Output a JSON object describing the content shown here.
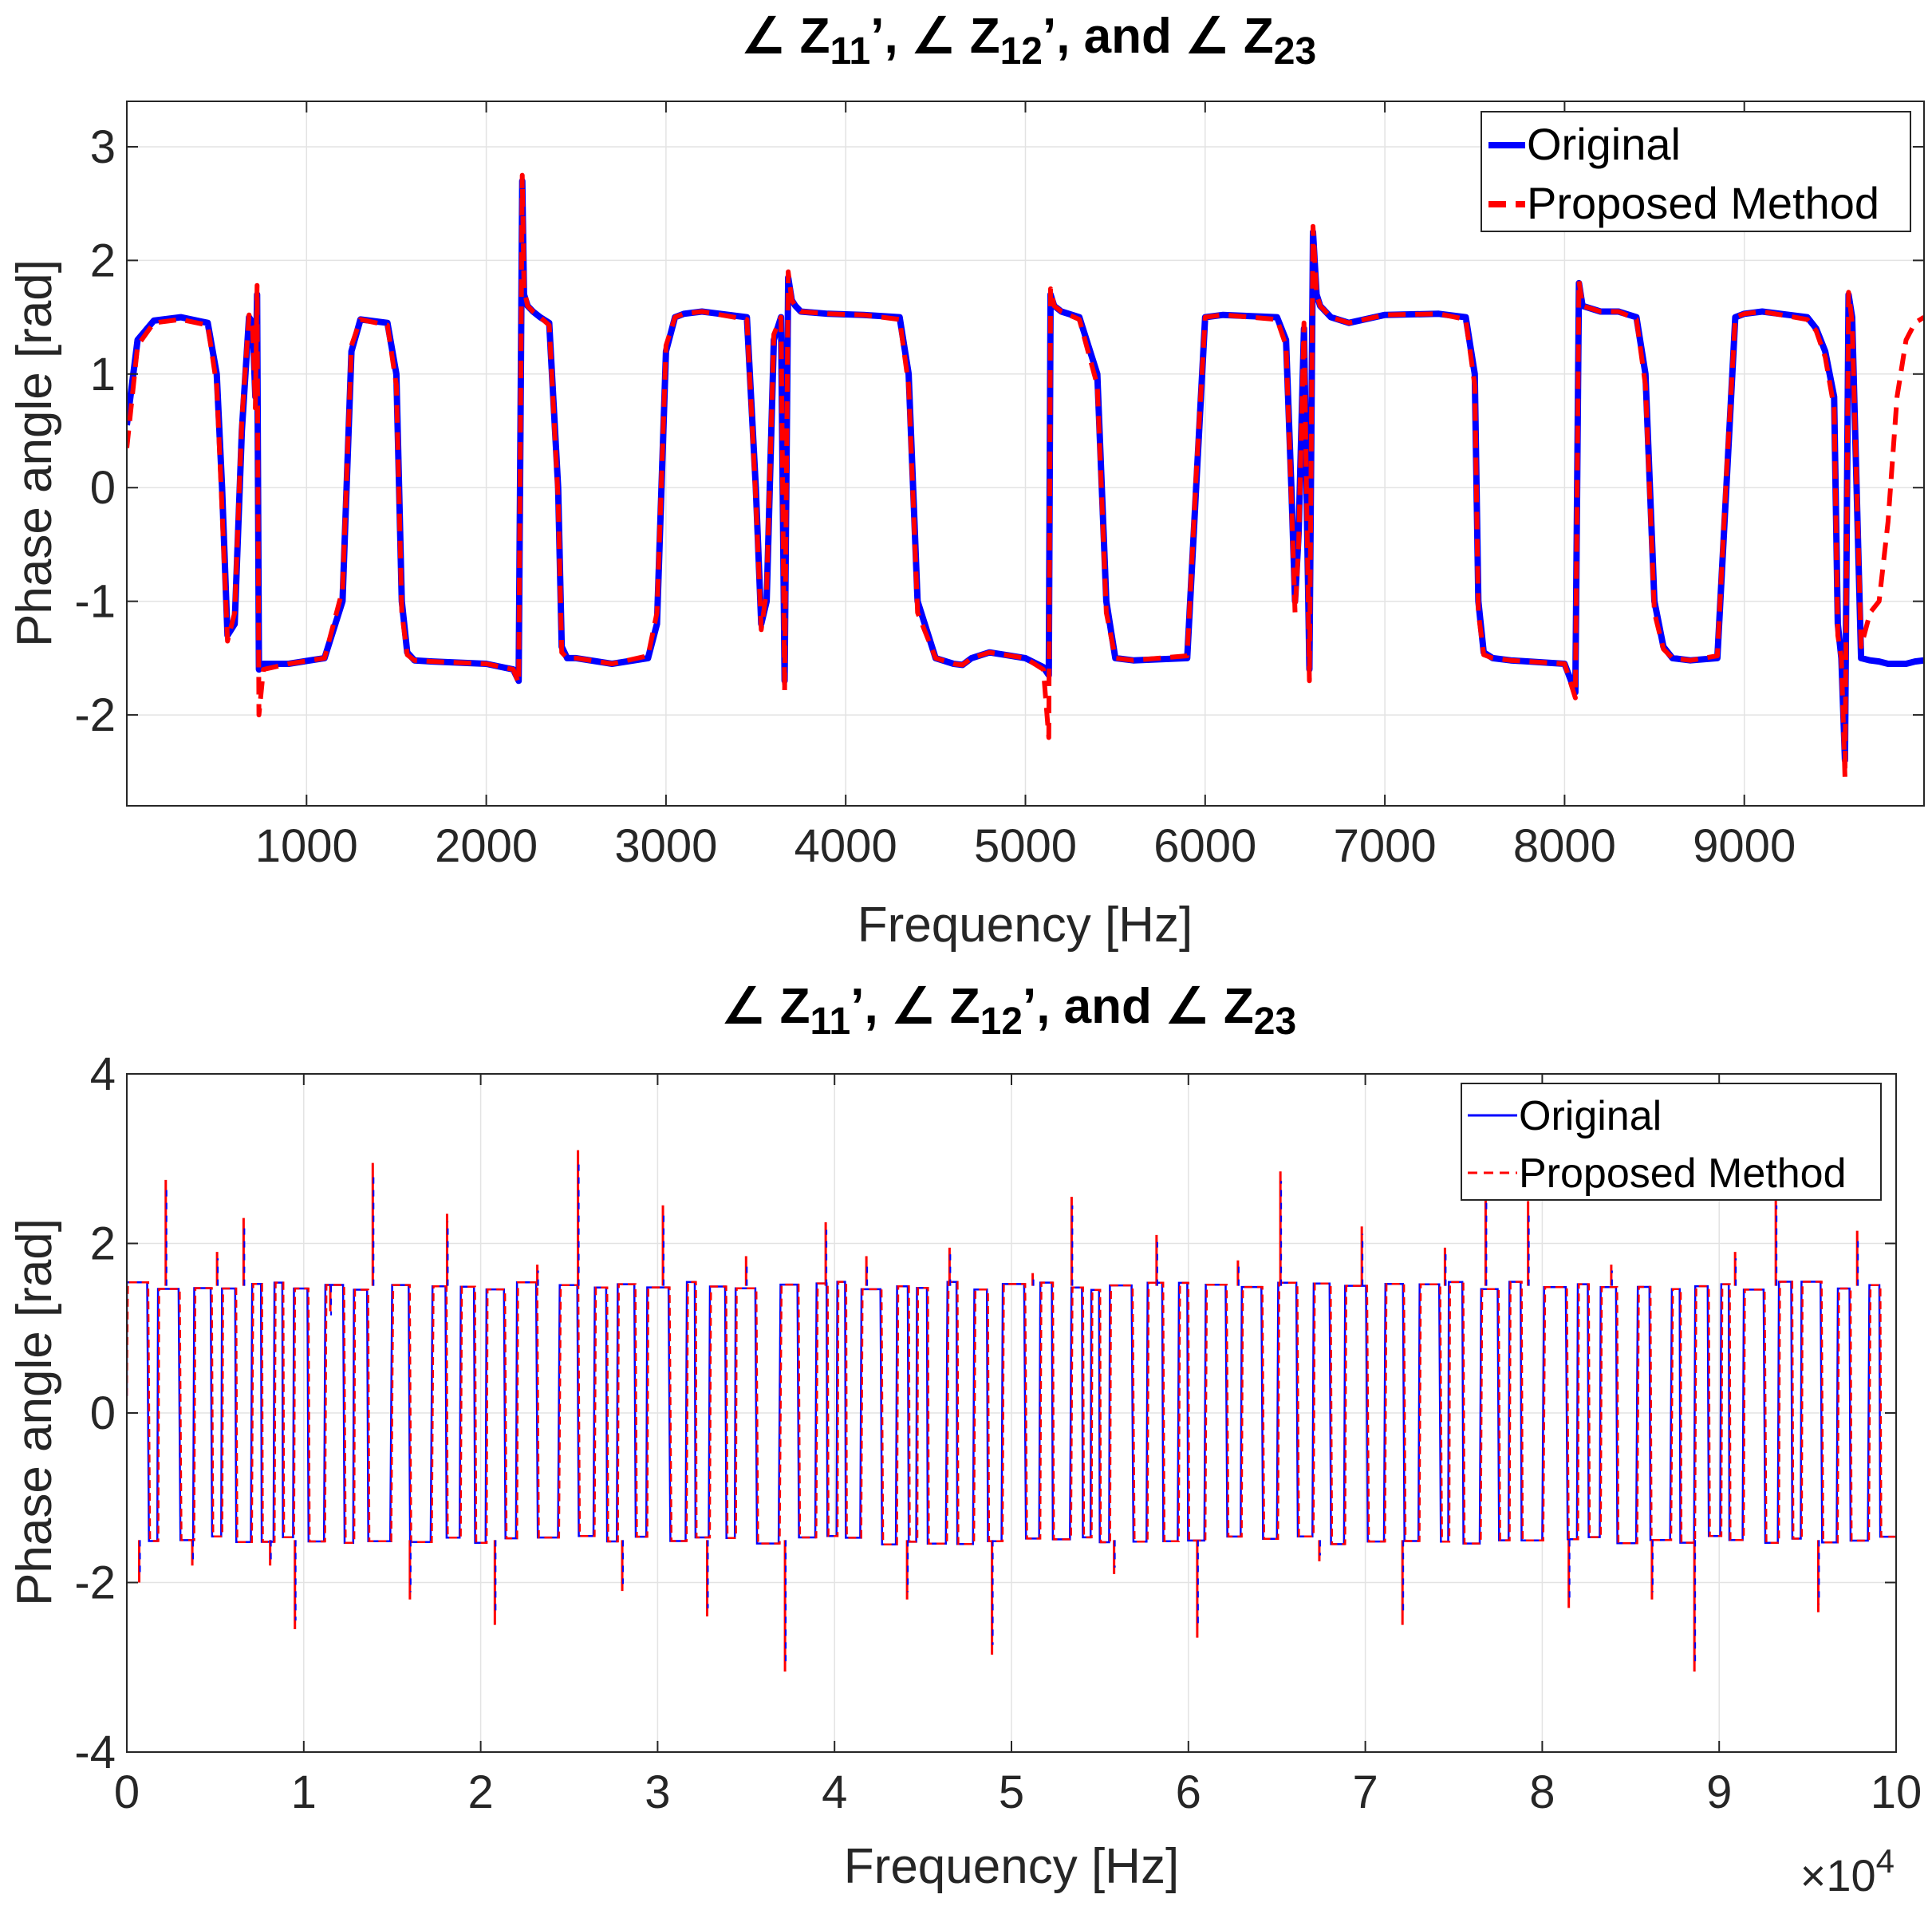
{
  "chart_data": [
    {
      "type": "line",
      "title": {
        "prefix": "∠ Z",
        "sub1": "11",
        "mid1": "’, ∠ Z",
        "sub2": "12",
        "mid2": "’, and ∠ Z",
        "sub3": "23"
      },
      "xlabel": "Frequency [Hz]",
      "ylabel": "Phase angle [rad]",
      "xlim": [
        0,
        10000
      ],
      "ylim": [
        -2.8,
        3.4
      ],
      "xticks": [
        1000,
        2000,
        3000,
        4000,
        5000,
        6000,
        7000,
        8000,
        9000
      ],
      "xtick_labels": [
        "1000",
        "2000",
        "3000",
        "4000",
        "5000",
        "6000",
        "7000",
        "8000",
        "9000"
      ],
      "yticks": [
        -2,
        -1,
        0,
        1,
        2,
        3
      ],
      "ytick_labels": [
        "-2",
        "-1",
        "0",
        "1",
        "2",
        "3"
      ],
      "grid": true,
      "legend": {
        "location": "top-right",
        "entries": [
          "Original",
          "Proposed Method"
        ]
      },
      "series": [
        {
          "name": "Original",
          "style": "solid",
          "color": "#0000ff",
          "x": [
            0,
            60,
            150,
            300,
            450,
            500,
            530,
            560,
            600,
            640,
            680,
            700,
            715,
            725,
            735,
            760,
            900,
            1100,
            1200,
            1250,
            1300,
            1450,
            1500,
            1530,
            1560,
            1600,
            1700,
            2000,
            2150,
            2180,
            2200,
            2210,
            2230,
            2260,
            2300,
            2350,
            2400,
            2420,
            2450,
            2500,
            2700,
            2900,
            2950,
            3000,
            3050,
            3100,
            3200,
            3450,
            3500,
            3530,
            3560,
            3600,
            3640,
            3660,
            3680,
            3700,
            3720,
            3750,
            3900,
            4100,
            4300,
            4350,
            4400,
            4500,
            4600,
            4650,
            4700,
            4800,
            5000,
            5100,
            5130,
            5140,
            5160,
            5200,
            5300,
            5400,
            5450,
            5500,
            5600,
            5900,
            5950,
            6000,
            6100,
            6400,
            6450,
            6480,
            6500,
            6520,
            6550,
            6580,
            6600,
            6620,
            6640,
            6700,
            6800,
            7000,
            7300,
            7450,
            7500,
            7520,
            7550,
            7600,
            7700,
            8000,
            8060,
            8080,
            8100,
            8200,
            8300,
            8400,
            8450,
            8500,
            8550,
            8600,
            8700,
            8850,
            8900,
            8950,
            9000,
            9100,
            9350,
            9400,
            9450,
            9500,
            9520,
            9540,
            9560,
            9580,
            9600,
            9650,
            9700,
            9750,
            9800,
            9850,
            9900,
            9950,
            10000
          ],
          "y": [
            0.55,
            1.3,
            1.47,
            1.5,
            1.45,
            1.0,
            0.0,
            -1.3,
            -1.2,
            0.5,
            1.5,
            1.45,
            0.8,
            1.7,
            -1.6,
            -1.55,
            -1.55,
            -1.5,
            -1.0,
            1.2,
            1.48,
            1.45,
            1.0,
            -1.0,
            -1.45,
            -1.52,
            -1.53,
            -1.55,
            -1.6,
            -1.7,
            2.7,
            1.7,
            1.6,
            1.55,
            1.5,
            1.45,
            0.0,
            -1.4,
            -1.5,
            -1.5,
            -1.55,
            -1.5,
            -1.2,
            1.2,
            1.5,
            1.53,
            1.55,
            1.5,
            0.0,
            -1.2,
            -1.0,
            1.3,
            1.5,
            -1.7,
            1.85,
            1.65,
            1.6,
            1.55,
            1.53,
            1.52,
            1.5,
            1.0,
            -1.0,
            -1.5,
            -1.55,
            -1.56,
            -1.5,
            -1.45,
            -1.5,
            -1.58,
            -1.65,
            1.7,
            1.6,
            1.55,
            1.5,
            1.0,
            -1.0,
            -1.5,
            -1.52,
            -1.5,
            0.0,
            1.5,
            1.52,
            1.5,
            1.3,
            0.0,
            -1.0,
            -0.4,
            1.4,
            -1.6,
            2.25,
            1.7,
            1.6,
            1.5,
            1.45,
            1.52,
            1.53,
            1.5,
            1.0,
            -1.0,
            -1.45,
            -1.5,
            -1.52,
            -1.55,
            -1.8,
            1.8,
            1.6,
            1.55,
            1.55,
            1.5,
            1.0,
            -1.0,
            -1.4,
            -1.5,
            -1.52,
            -1.5,
            0.0,
            1.5,
            1.53,
            1.55,
            1.5,
            1.4,
            1.2,
            0.8,
            -1.2,
            -1.5,
            -2.4,
            1.7,
            1.5,
            -1.5,
            -1.52,
            -1.53,
            -1.55,
            -1.55,
            -1.55,
            -1.53,
            -1.52
          ]
        },
        {
          "name": "Proposed Method",
          "style": "dashed",
          "color": "#ff0000",
          "x": [
            0,
            60,
            150,
            300,
            450,
            500,
            530,
            560,
            600,
            640,
            680,
            700,
            715,
            725,
            735,
            760,
            900,
            1100,
            1200,
            1250,
            1300,
            1450,
            1500,
            1530,
            1560,
            1600,
            1700,
            2000,
            2150,
            2180,
            2200,
            2210,
            2230,
            2260,
            2300,
            2350,
            2400,
            2420,
            2450,
            2500,
            2700,
            2900,
            2950,
            3000,
            3050,
            3100,
            3200,
            3450,
            3500,
            3530,
            3560,
            3600,
            3640,
            3660,
            3680,
            3700,
            3720,
            3750,
            3900,
            4100,
            4300,
            4350,
            4400,
            4500,
            4600,
            4650,
            4700,
            4800,
            5000,
            5100,
            5130,
            5140,
            5160,
            5200,
            5300,
            5400,
            5450,
            5500,
            5600,
            5900,
            5950,
            6000,
            6100,
            6400,
            6450,
            6480,
            6500,
            6520,
            6550,
            6580,
            6600,
            6620,
            6640,
            6700,
            6800,
            7000,
            7300,
            7450,
            7500,
            7520,
            7550,
            7600,
            7700,
            8000,
            8060,
            8080,
            8100,
            8200,
            8300,
            8400,
            8450,
            8500,
            8550,
            8600,
            8700,
            8850,
            8900,
            8950,
            9000,
            9100,
            9350,
            9400,
            9450,
            9500,
            9520,
            9540,
            9560,
            9580,
            9600,
            9650,
            9700,
            9750,
            9800,
            9850,
            9900,
            9950,
            10000
          ],
          "y": [
            0.35,
            1.25,
            1.45,
            1.48,
            1.43,
            0.9,
            -0.2,
            -1.35,
            -1.1,
            0.6,
            1.52,
            1.4,
            0.7,
            1.78,
            -2.0,
            -1.6,
            -1.55,
            -1.5,
            -0.9,
            1.25,
            1.48,
            1.43,
            0.9,
            -1.1,
            -1.47,
            -1.52,
            -1.53,
            -1.55,
            -1.6,
            -1.72,
            2.75,
            1.75,
            1.6,
            1.55,
            1.5,
            1.43,
            -0.1,
            -1.45,
            -1.5,
            -1.5,
            -1.55,
            -1.48,
            -1.1,
            1.25,
            1.5,
            1.53,
            1.55,
            1.48,
            -0.1,
            -1.25,
            -0.9,
            1.35,
            1.5,
            -1.8,
            1.9,
            1.65,
            1.6,
            1.55,
            1.53,
            1.52,
            1.48,
            0.9,
            -1.1,
            -1.5,
            -1.55,
            -1.56,
            -1.5,
            -1.45,
            -1.5,
            -1.6,
            -2.2,
            1.75,
            1.6,
            1.55,
            1.48,
            0.9,
            -1.1,
            -1.5,
            -1.52,
            -1.48,
            0.1,
            1.5,
            1.52,
            1.48,
            1.25,
            -0.1,
            -1.1,
            -0.5,
            1.45,
            -1.7,
            2.3,
            1.7,
            1.6,
            1.5,
            1.45,
            1.52,
            1.53,
            1.48,
            0.9,
            -1.1,
            -1.47,
            -1.5,
            -1.52,
            -1.55,
            -1.85,
            1.82,
            1.6,
            1.55,
            1.55,
            1.48,
            0.9,
            -1.1,
            -1.42,
            -1.5,
            -1.52,
            -1.48,
            0.1,
            1.5,
            1.53,
            1.55,
            1.48,
            1.38,
            1.15,
            0.7,
            -1.3,
            -1.5,
            -2.55,
            1.72,
            1.45,
            -1.4,
            -1.1,
            -1.0,
            -0.3,
            0.8,
            1.3,
            1.45,
            1.5
          ]
        }
      ]
    },
    {
      "type": "line",
      "title": {
        "prefix": "∠ Z",
        "sub1": "11",
        "mid1": "’, ∠ Z",
        "sub2": "12",
        "mid2": "’, and ∠ Z",
        "sub3": "23"
      },
      "xlabel": "Frequency [Hz]",
      "ylabel": "Phase angle [rad]",
      "x_exponent_label": {
        "base": "×10",
        "exp": "4"
      },
      "xlim": [
        0,
        100000
      ],
      "ylim": [
        -4,
        4
      ],
      "xticks": [
        0,
        10000,
        20000,
        30000,
        40000,
        50000,
        60000,
        70000,
        80000,
        90000,
        100000
      ],
      "xtick_labels": [
        "0",
        "1",
        "2",
        "3",
        "4",
        "5",
        "6",
        "7",
        "8",
        "9",
        "10"
      ],
      "yticks": [
        -4,
        -2,
        0,
        2,
        4
      ],
      "ytick_labels": [
        "-4",
        "-2",
        "0",
        "2",
        "4"
      ],
      "grid": true,
      "legend": {
        "location": "top-right",
        "entries": [
          "Original",
          "Proposed Method"
        ]
      },
      "series": [
        {
          "name": "Original",
          "style": "solid",
          "color": "#0000ff",
          "pattern": "square-wave oscillation between about -1.55 and 1.55 rad across 0–100000 Hz"
        },
        {
          "name": "Proposed Method",
          "style": "dashed",
          "color": "#ff0000",
          "pattern": "square-wave oscillation between about -1.55 and 1.55 rad across 0–100000 Hz"
        }
      ],
      "spikes": {
        "x": [
          700,
          2200,
          3700,
          5100,
          6600,
          8100,
          9500,
          11500,
          13900,
          16000,
          18100,
          20800,
          23200,
          25500,
          28000,
          30300,
          32800,
          35000,
          37200,
          39500,
          41800,
          44100,
          46500,
          48900,
          51200,
          53400,
          55800,
          58200,
          60500,
          62800,
          65200,
          67400,
          69800,
          72100,
          74500,
          76800,
          79200,
          81500,
          83900,
          86200,
          88600,
          90900,
          93200,
          95600,
          97800
        ],
        "y": [
          -2.0,
          2.75,
          -1.8,
          1.9,
          2.3,
          -1.8,
          -2.55,
          1.2,
          2.95,
          -2.2,
          2.35,
          -2.5,
          1.75,
          3.1,
          -2.1,
          2.45,
          -2.4,
          1.85,
          -3.05,
          2.25,
          1.85,
          -2.2,
          1.95,
          -2.85,
          1.65,
          2.55,
          -1.9,
          2.1,
          -2.65,
          1.8,
          2.85,
          -1.75,
          2.2,
          -2.5,
          1.95,
          2.65,
          2.5,
          -2.3,
          1.75,
          -2.2,
          -3.05,
          1.9,
          2.55,
          -2.35,
          2.15
        ]
      }
    }
  ]
}
